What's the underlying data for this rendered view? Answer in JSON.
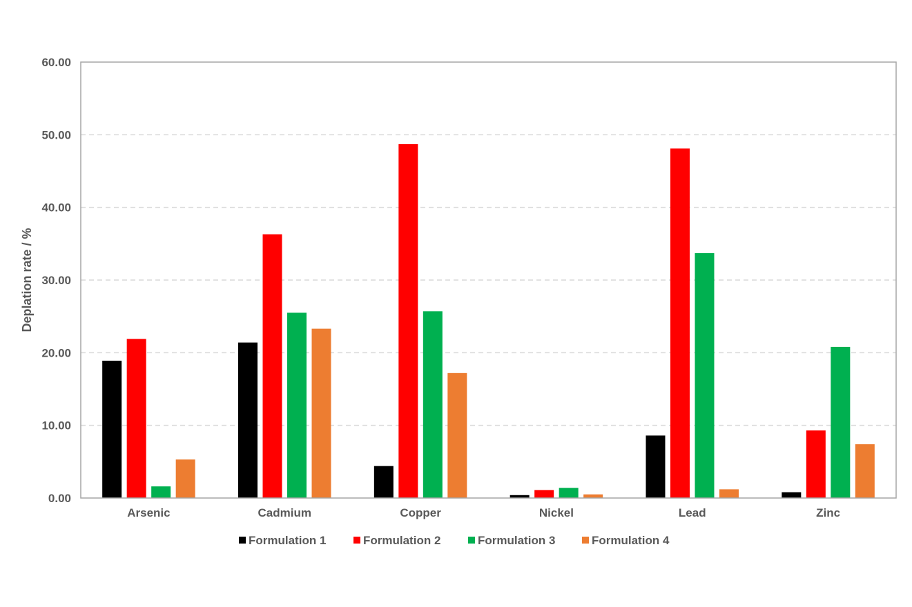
{
  "chart_data": {
    "type": "bar",
    "categories": [
      "Arsenic",
      "Cadmium",
      "Copper",
      "Nickel",
      "Lead",
      "Zinc"
    ],
    "series": [
      {
        "name": "Formulation 1",
        "color": "#000000",
        "values": [
          18.9,
          21.4,
          4.4,
          0.4,
          8.6,
          0.8
        ]
      },
      {
        "name": "Formulation 2",
        "color": "#ff0000",
        "values": [
          21.9,
          36.3,
          48.7,
          1.1,
          48.1,
          9.3
        ]
      },
      {
        "name": "Formulation 3",
        "color": "#00b050",
        "values": [
          1.6,
          25.5,
          25.7,
          1.4,
          33.7,
          20.8
        ]
      },
      {
        "name": "Formulation 4",
        "color": "#ed7d31",
        "values": [
          5.3,
          23.3,
          17.2,
          0.5,
          1.2,
          7.4
        ]
      }
    ],
    "title": "",
    "xlabel": "",
    "ylabel": "Deplation rate / %",
    "ylim": [
      0,
      60
    ],
    "yticks": [
      "0.00",
      "10.00",
      "20.00",
      "30.00",
      "40.00",
      "50.00",
      "60.00"
    ],
    "grid": true,
    "legend": "bottom"
  }
}
